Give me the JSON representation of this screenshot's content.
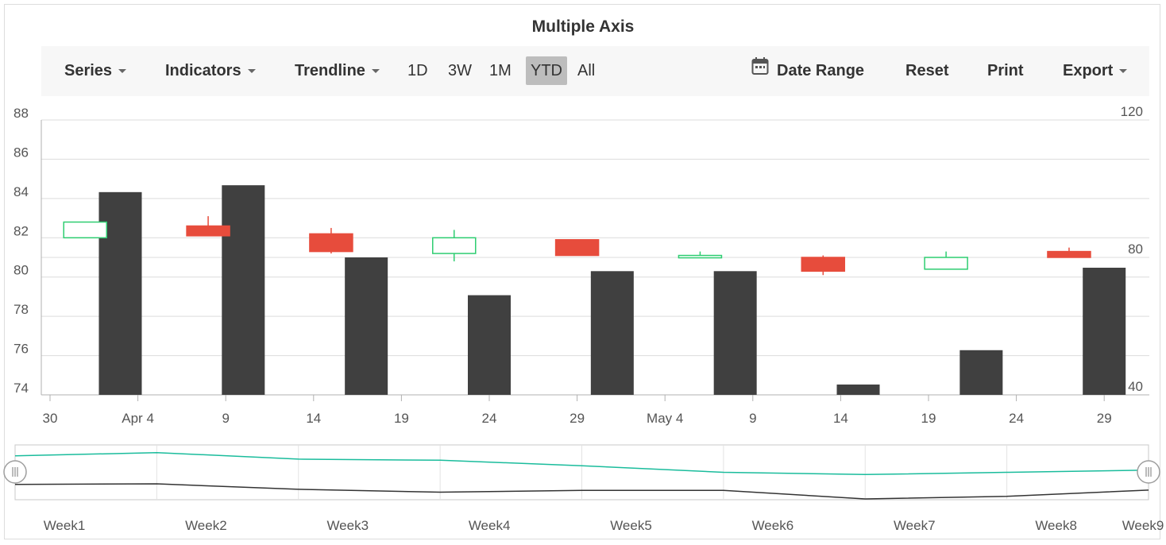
{
  "title": "Multiple Axis",
  "toolbar": {
    "series_label": "Series",
    "indicators_label": "Indicators",
    "trendline_label": "Trendline",
    "periods": [
      "1D",
      "3W",
      "1M",
      "YTD",
      "All"
    ],
    "active_period": "YTD",
    "date_range_label": "Date Range",
    "reset_label": "Reset",
    "print_label": "Print",
    "export_label": "Export"
  },
  "colors": {
    "bullish": "#2ecd71",
    "bearish": "#e74c3c",
    "volume": "#404040",
    "nav_line_teal": "#1abc9c",
    "nav_line_dark": "#333333",
    "active_period_bg": "#bdbdbd"
  },
  "chart_data": {
    "type": "bar",
    "primary_axis": {
      "ylim": [
        74,
        88
      ],
      "ticks": [
        "74",
        "76",
        "78",
        "80",
        "82",
        "84",
        "86",
        "88"
      ]
    },
    "secondary_axis": {
      "ylim": [
        40,
        120
      ],
      "ticks": [
        "40",
        "80",
        "120"
      ]
    },
    "x_axis": {
      "ticks": [
        "30",
        "Apr 4",
        "9",
        "14",
        "19",
        "24",
        "29",
        "May 4",
        "9",
        "14",
        "19",
        "24",
        "29"
      ],
      "range": [
        "2018-03-30",
        "2018-06-01"
      ]
    },
    "grid": true,
    "candles": [
      {
        "date": "2018-04-01",
        "open": 82.0,
        "high": 82.8,
        "low": 82.0,
        "close": 82.8
      },
      {
        "date": "2018-04-08",
        "open": 82.6,
        "high": 83.1,
        "low": 82.1,
        "close": 82.1
      },
      {
        "date": "2018-04-15",
        "open": 82.2,
        "high": 82.5,
        "low": 81.2,
        "close": 81.3
      },
      {
        "date": "2018-04-22",
        "open": 81.2,
        "high": 82.4,
        "low": 80.8,
        "close": 82.0
      },
      {
        "date": "2018-04-29",
        "open": 81.9,
        "high": 81.9,
        "low": 81.1,
        "close": 81.1
      },
      {
        "date": "2018-05-06",
        "open": 81.0,
        "high": 81.3,
        "low": 81.0,
        "close": 81.1
      },
      {
        "date": "2018-05-13",
        "open": 81.0,
        "high": 81.1,
        "low": 80.1,
        "close": 80.3
      },
      {
        "date": "2018-05-20",
        "open": 80.4,
        "high": 81.3,
        "low": 80.4,
        "close": 81.0
      },
      {
        "date": "2018-05-27",
        "open": 81.3,
        "high": 81.5,
        "low": 81.0,
        "close": 81.0
      }
    ],
    "volume": [
      {
        "date": "2018-04-03",
        "value": 99
      },
      {
        "date": "2018-04-10",
        "value": 101
      },
      {
        "date": "2018-04-17",
        "value": 80
      },
      {
        "date": "2018-04-24",
        "value": 69
      },
      {
        "date": "2018-05-01",
        "value": 76
      },
      {
        "date": "2018-05-08",
        "value": 76
      },
      {
        "date": "2018-05-15",
        "value": 43
      },
      {
        "date": "2018-05-22",
        "value": 53
      },
      {
        "date": "2018-05-29",
        "value": 77
      }
    ],
    "navigator": {
      "labels": [
        "Week1",
        "Week2",
        "Week3",
        "Week4",
        "Week5",
        "Week6",
        "Week7",
        "Week8",
        "Week9"
      ]
    }
  }
}
